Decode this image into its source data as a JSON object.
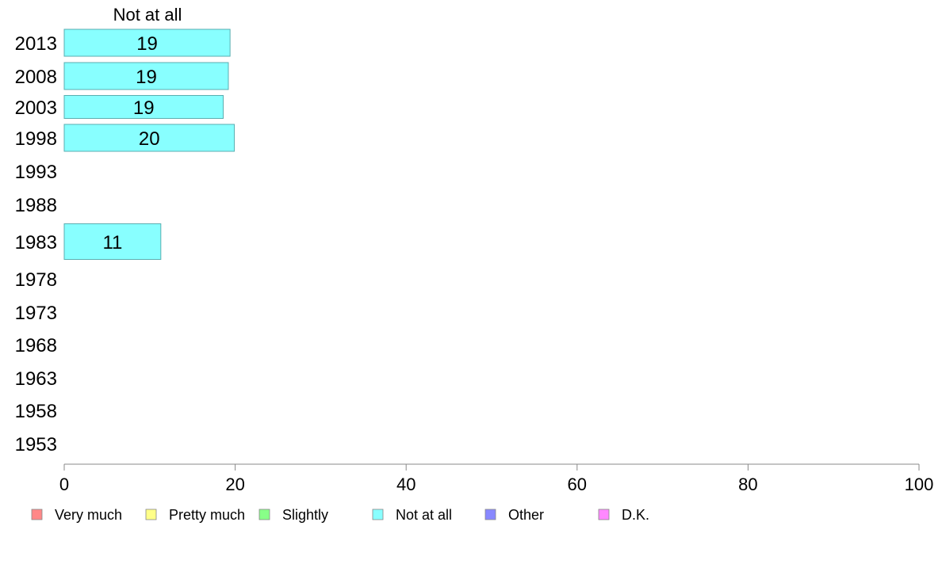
{
  "chart_data": {
    "type": "bar",
    "orientation": "horizontal",
    "panel_title": "Not at all",
    "categories": [
      "2013",
      "2008",
      "2003",
      "1998",
      "1993",
      "1988",
      "1983",
      "1978",
      "1973",
      "1968",
      "1963",
      "1958",
      "1953"
    ],
    "series": [
      {
        "name": "Not at all",
        "color": "#88ffff",
        "values": [
          19.4,
          19.2,
          18.6,
          19.9,
          null,
          null,
          11.3,
          null,
          null,
          null,
          null,
          null,
          null
        ],
        "labels": [
          "19",
          "19",
          "19",
          "20",
          null,
          null,
          "11",
          null,
          null,
          null,
          null,
          null,
          null
        ]
      }
    ],
    "xlim": [
      0,
      100
    ],
    "xticks": [
      0,
      20,
      40,
      60,
      80,
      100
    ],
    "grid": false,
    "legend_position": "bottom",
    "legend": [
      {
        "label": "Very much",
        "color": "#ff8888"
      },
      {
        "label": "Pretty much",
        "color": "#ffff88"
      },
      {
        "label": "Slightly",
        "color": "#88ff88"
      },
      {
        "label": "Not at all",
        "color": "#88ffff"
      },
      {
        "label": "Other",
        "color": "#8888ff"
      },
      {
        "label": "D.K.",
        "color": "#ff88ff"
      }
    ]
  }
}
